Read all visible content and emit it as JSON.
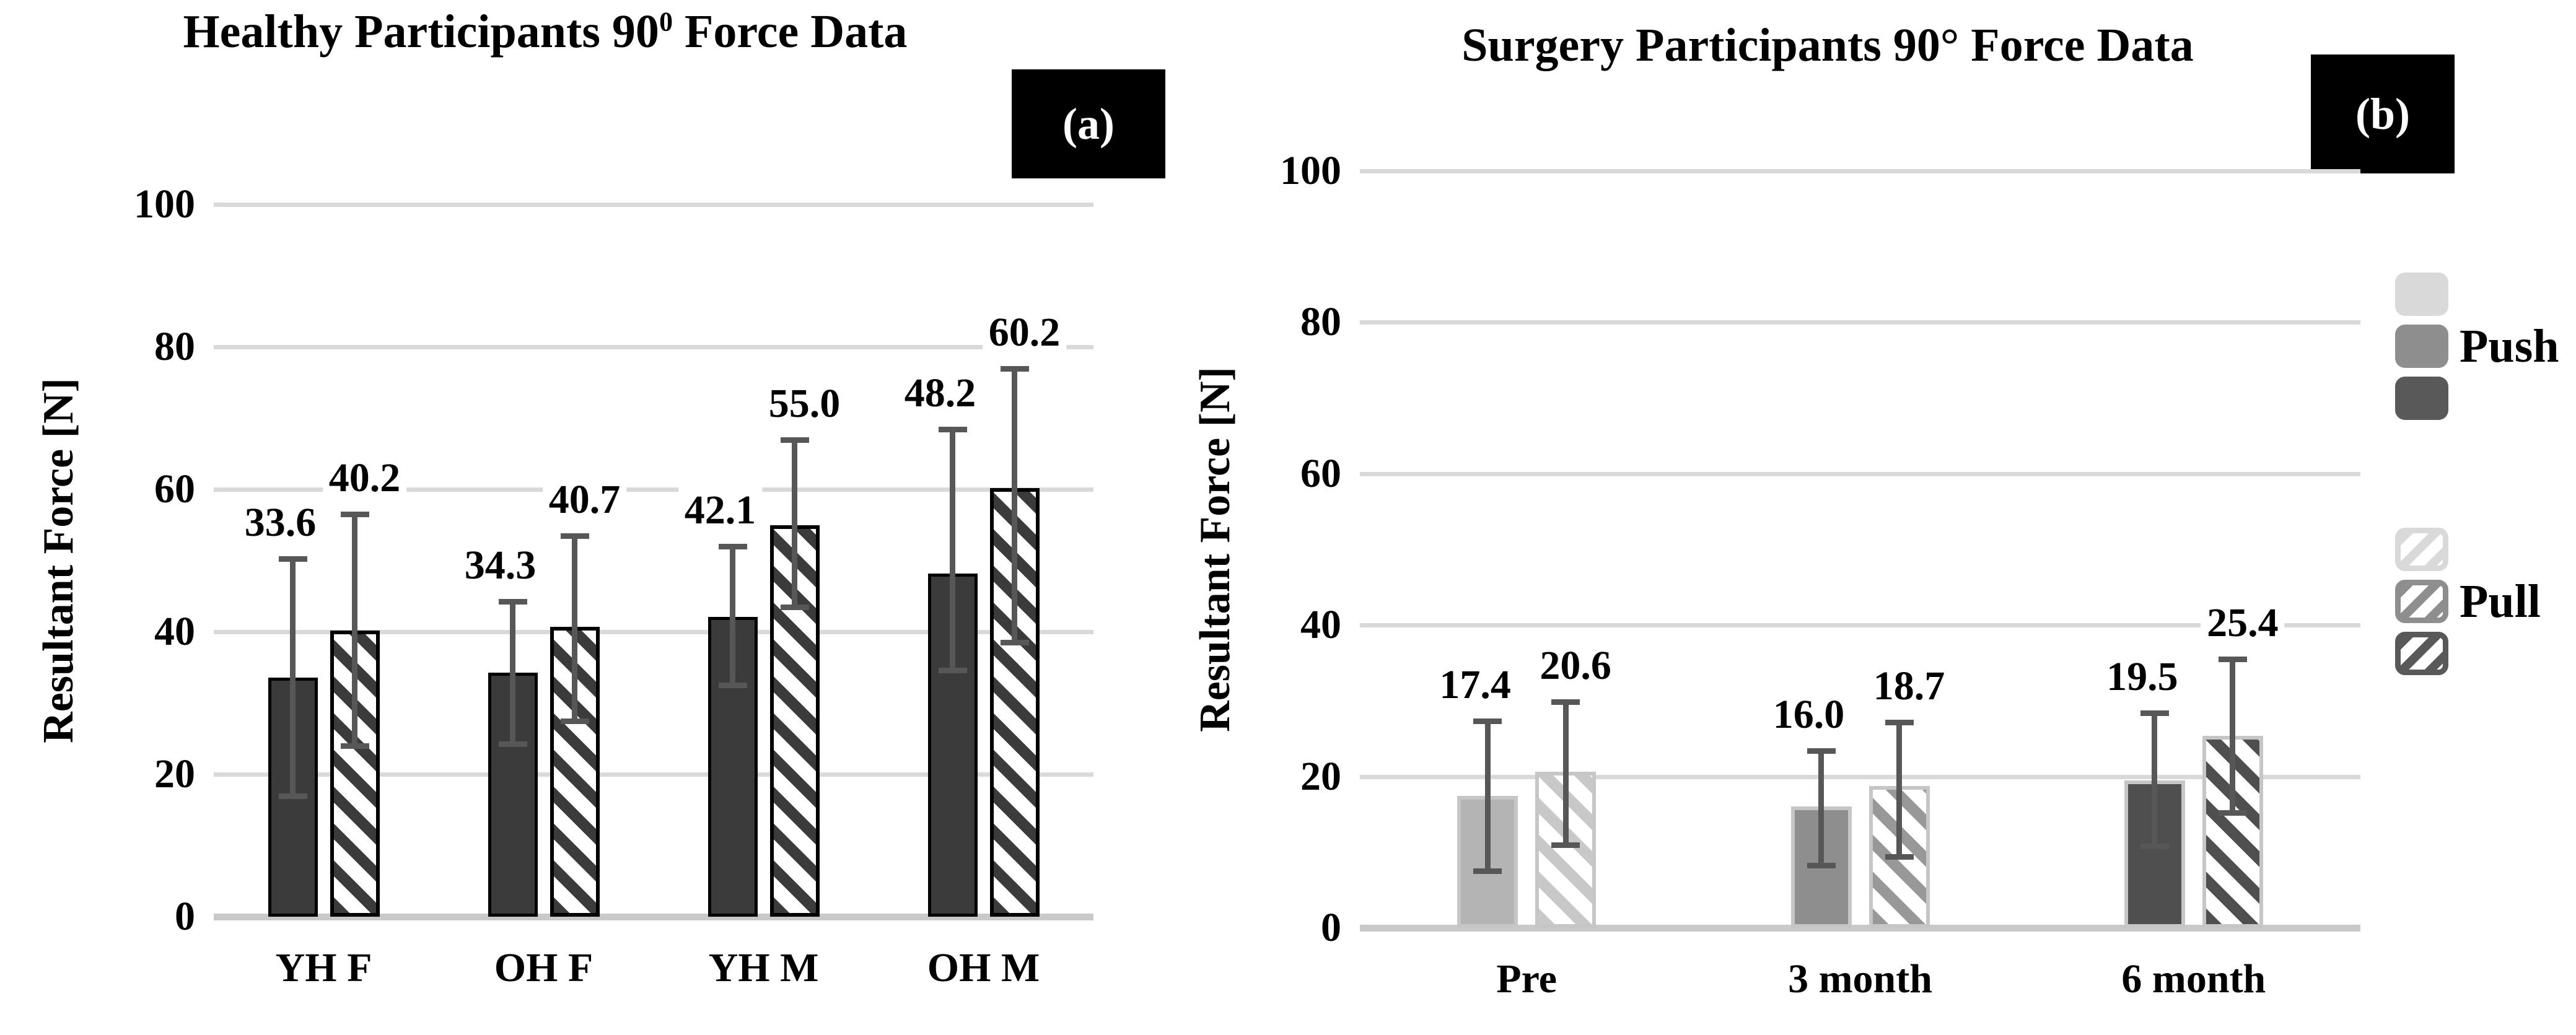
{
  "figure": {
    "panel_a_label": "(a)",
    "panel_b_label": "(b)",
    "legend": {
      "push_label": "Push",
      "pull_label": "Pull",
      "position": "right"
    },
    "colors": {
      "background": "#ffffff",
      "text": "#000000",
      "gridline": "#d9d9d9",
      "axis_baseline": "#c9c9c9",
      "error_bar": "#575757",
      "panel_label_bg": "#000000",
      "panel_label_fg": "#ffffff",
      "healthy_push_fill": "#3b3b3b",
      "healthy_pull_stripe": "#3b3b3b",
      "healthy_pull_bg": "#ffffff",
      "healthy_bar_border": "#000000",
      "surgery_bar_border": "#c6c6c6",
      "surgery_light_push_fill": "#b4b4b4",
      "surgery_light_pull_stripe": "#c8c8c8",
      "surgery_medium_push_fill": "#8e8e8e",
      "surgery_medium_pull_stripe": "#989898",
      "surgery_dark_push_fill": "#4f4f4f",
      "surgery_dark_pull_stripe": "#4f4f4f",
      "legend_swatch_light": "#d9d9d9",
      "legend_swatch_medium": "#8e8e8e",
      "legend_swatch_dark": "#595959"
    }
  },
  "chart_data": [
    {
      "type": "bar",
      "panel": "a",
      "title": {
        "pre": "Healthy Participants 90",
        "sup": "0",
        "post": " Force Data"
      },
      "ylabel": "Resultant Force [N]",
      "xlabel": "",
      "ylim": [
        0,
        100
      ],
      "yticks": [
        0,
        20,
        40,
        60,
        80,
        100
      ],
      "grid": true,
      "error_bars": true,
      "categories": [
        "YH F",
        "OH F",
        "YH M",
        "OH M"
      ],
      "series": [
        {
          "name": "Push",
          "values": [
            33.6,
            34.3,
            42.1,
            48.2
          ],
          "error_low": [
            17.0,
            24.3,
            32.5,
            34.6
          ],
          "error_high": [
            50.3,
            44.3,
            52.0,
            68.4
          ]
        },
        {
          "name": "Pull",
          "values": [
            40.2,
            40.7,
            55.0,
            60.2
          ],
          "error_low": [
            24.0,
            27.5,
            43.5,
            38.5
          ],
          "error_high": [
            56.5,
            53.5,
            67.0,
            77.0
          ]
        }
      ]
    },
    {
      "type": "bar",
      "panel": "b",
      "title": {
        "pre": "Surgery Participants 90",
        "sup": "",
        "post": "° Force Data"
      },
      "ylabel": "Resultant Force [N]",
      "xlabel": "",
      "ylim": [
        0,
        100
      ],
      "yticks": [
        0,
        20,
        40,
        60,
        80,
        100
      ],
      "grid": true,
      "error_bars": true,
      "categories": [
        "Pre",
        "3 month",
        "6 month"
      ],
      "category_shades": [
        "light",
        "medium",
        "dark"
      ],
      "series": [
        {
          "name": "Push",
          "values": [
            17.4,
            16.0,
            19.5
          ],
          "error_low": [
            7.5,
            8.3,
            10.8
          ],
          "error_high": [
            27.3,
            23.4,
            28.4
          ]
        },
        {
          "name": "Pull",
          "values": [
            20.6,
            18.7,
            25.4
          ],
          "error_low": [
            11.0,
            9.4,
            15.2
          ],
          "error_high": [
            29.9,
            27.2,
            35.5
          ]
        }
      ]
    }
  ]
}
